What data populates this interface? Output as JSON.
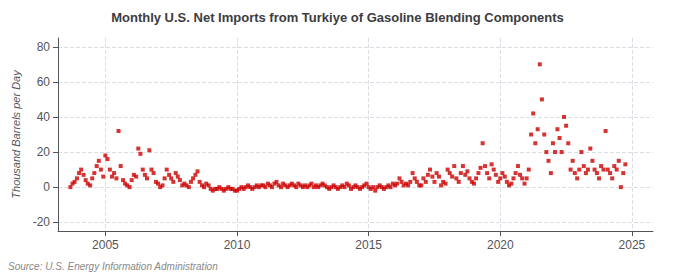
{
  "chart_data": {
    "type": "scatter",
    "title": "Monthly U.S. Net Imports from Turkiye of Gasoline Blending Components",
    "ylabel": "Thousand Barrels per Day",
    "annotations": [
      "Source: U.S. Energy Information Administration"
    ],
    "color": "#cc0000",
    "marker": "square",
    "grid": true,
    "xlim": [
      2003.2,
      2025.8
    ],
    "ylim": [
      -25,
      85
    ],
    "xticks": [
      2005,
      2010,
      2015,
      2020,
      2025
    ],
    "yticks": [
      -20,
      0,
      20,
      40,
      60,
      80
    ],
    "x": [
      2003.67,
      2003.75,
      2003.83,
      2003.92,
      2004.0,
      2004.08,
      2004.17,
      2004.25,
      2004.33,
      2004.42,
      2004.5,
      2004.58,
      2004.67,
      2004.75,
      2004.83,
      2004.92,
      2005.0,
      2005.08,
      2005.17,
      2005.25,
      2005.33,
      2005.42,
      2005.5,
      2005.58,
      2005.67,
      2005.75,
      2005.83,
      2005.92,
      2006.0,
      2006.08,
      2006.17,
      2006.25,
      2006.33,
      2006.42,
      2006.5,
      2006.58,
      2006.67,
      2006.75,
      2006.83,
      2006.92,
      2007.0,
      2007.08,
      2007.17,
      2007.25,
      2007.33,
      2007.42,
      2007.5,
      2007.58,
      2007.67,
      2007.75,
      2007.83,
      2007.92,
      2008.0,
      2008.08,
      2008.17,
      2008.25,
      2008.33,
      2008.42,
      2008.5,
      2008.58,
      2008.67,
      2008.75,
      2008.83,
      2008.92,
      2009.0,
      2009.08,
      2009.17,
      2009.25,
      2009.33,
      2009.42,
      2009.5,
      2009.58,
      2009.67,
      2009.75,
      2009.83,
      2009.92,
      2010.0,
      2010.08,
      2010.17,
      2010.25,
      2010.33,
      2010.42,
      2010.5,
      2010.58,
      2010.67,
      2010.75,
      2010.83,
      2010.92,
      2011.0,
      2011.08,
      2011.17,
      2011.25,
      2011.33,
      2011.42,
      2011.5,
      2011.58,
      2011.67,
      2011.75,
      2011.83,
      2011.92,
      2012.0,
      2012.08,
      2012.17,
      2012.25,
      2012.33,
      2012.42,
      2012.5,
      2012.58,
      2012.67,
      2012.75,
      2012.83,
      2012.92,
      2013.0,
      2013.08,
      2013.17,
      2013.25,
      2013.33,
      2013.42,
      2013.5,
      2013.58,
      2013.67,
      2013.75,
      2013.83,
      2013.92,
      2014.0,
      2014.08,
      2014.17,
      2014.25,
      2014.33,
      2014.42,
      2014.5,
      2014.58,
      2014.67,
      2014.75,
      2014.83,
      2014.92,
      2015.0,
      2015.08,
      2015.17,
      2015.25,
      2015.33,
      2015.42,
      2015.5,
      2015.58,
      2015.67,
      2015.75,
      2015.83,
      2015.92,
      2016.0,
      2016.08,
      2016.17,
      2016.25,
      2016.33,
      2016.42,
      2016.5,
      2016.58,
      2016.67,
      2016.75,
      2016.83,
      2016.92,
      2017.0,
      2017.08,
      2017.17,
      2017.25,
      2017.33,
      2017.42,
      2017.5,
      2017.58,
      2017.67,
      2017.75,
      2017.83,
      2017.92,
      2018.0,
      2018.08,
      2018.17,
      2018.25,
      2018.33,
      2018.42,
      2018.5,
      2018.58,
      2018.67,
      2018.75,
      2018.83,
      2018.92,
      2019.0,
      2019.08,
      2019.17,
      2019.25,
      2019.33,
      2019.42,
      2019.5,
      2019.58,
      2019.67,
      2019.75,
      2019.83,
      2019.92,
      2020.0,
      2020.08,
      2020.17,
      2020.25,
      2020.33,
      2020.42,
      2020.5,
      2020.58,
      2020.67,
      2020.75,
      2020.83,
      2020.92,
      2021.0,
      2021.08,
      2021.17,
      2021.25,
      2021.33,
      2021.42,
      2021.5,
      2021.58,
      2021.67,
      2021.75,
      2021.83,
      2021.92,
      2022.0,
      2022.08,
      2022.17,
      2022.25,
      2022.33,
      2022.42,
      2022.5,
      2022.58,
      2022.67,
      2022.75,
      2022.83,
      2022.92,
      2023.0,
      2023.08,
      2023.17,
      2023.25,
      2023.33,
      2023.42,
      2023.5,
      2023.58,
      2023.67,
      2023.75,
      2023.83,
      2023.92,
      2024.0,
      2024.08,
      2024.17,
      2024.25,
      2024.33,
      2024.42,
      2024.5,
      2024.58,
      2024.67,
      2024.75
    ],
    "values": [
      0,
      2,
      3,
      5,
      8,
      10,
      7,
      4,
      2,
      1,
      5,
      8,
      12,
      15,
      10,
      6,
      18,
      16,
      10,
      6,
      8,
      5,
      32,
      12,
      4,
      2,
      1,
      0,
      4,
      7,
      6,
      22,
      19,
      10,
      7,
      5,
      21,
      10,
      8,
      3,
      2,
      0,
      1,
      5,
      10,
      7,
      5,
      3,
      8,
      6,
      4,
      1,
      2,
      1,
      0,
      3,
      5,
      7,
      9,
      3,
      1,
      0,
      2,
      1,
      -1,
      -2,
      -1,
      -1,
      0,
      -1,
      -2,
      -1,
      0,
      -1,
      -1,
      -2,
      -2,
      -1,
      0,
      -1,
      0,
      1,
      0,
      -1,
      0,
      1,
      0,
      1,
      1,
      0,
      2,
      1,
      0,
      2,
      3,
      1,
      0,
      2,
      1,
      0,
      1,
      2,
      1,
      0,
      2,
      1,
      0,
      1,
      0,
      1,
      2,
      0,
      1,
      0,
      1,
      2,
      1,
      0,
      -1,
      0,
      1,
      0,
      -1,
      0,
      1,
      0,
      2,
      1,
      -1,
      0,
      1,
      0,
      -1,
      0,
      1,
      2,
      0,
      -1,
      0,
      -2,
      0,
      1,
      0,
      -1,
      0,
      1,
      0,
      2,
      1,
      2,
      5,
      3,
      1,
      2,
      1,
      3,
      8,
      5,
      3,
      1,
      1,
      5,
      3,
      7,
      10,
      6,
      3,
      8,
      6,
      1,
      3,
      2,
      10,
      8,
      6,
      12,
      5,
      3,
      8,
      12,
      7,
      9,
      5,
      3,
      2,
      5,
      8,
      11,
      25,
      12,
      8,
      5,
      13,
      10,
      7,
      3,
      5,
      8,
      6,
      3,
      1,
      2,
      5,
      8,
      12,
      7,
      5,
      2,
      5,
      10,
      30,
      42,
      25,
      33,
      70,
      50,
      30,
      20,
      15,
      8,
      25,
      20,
      33,
      28,
      20,
      40,
      35,
      25,
      10,
      15,
      8,
      5,
      10,
      20,
      12,
      8,
      10,
      22,
      15,
      10,
      8,
      5,
      12,
      10,
      32,
      10,
      8,
      5,
      12,
      10,
      15,
      0,
      8,
      13
    ]
  }
}
